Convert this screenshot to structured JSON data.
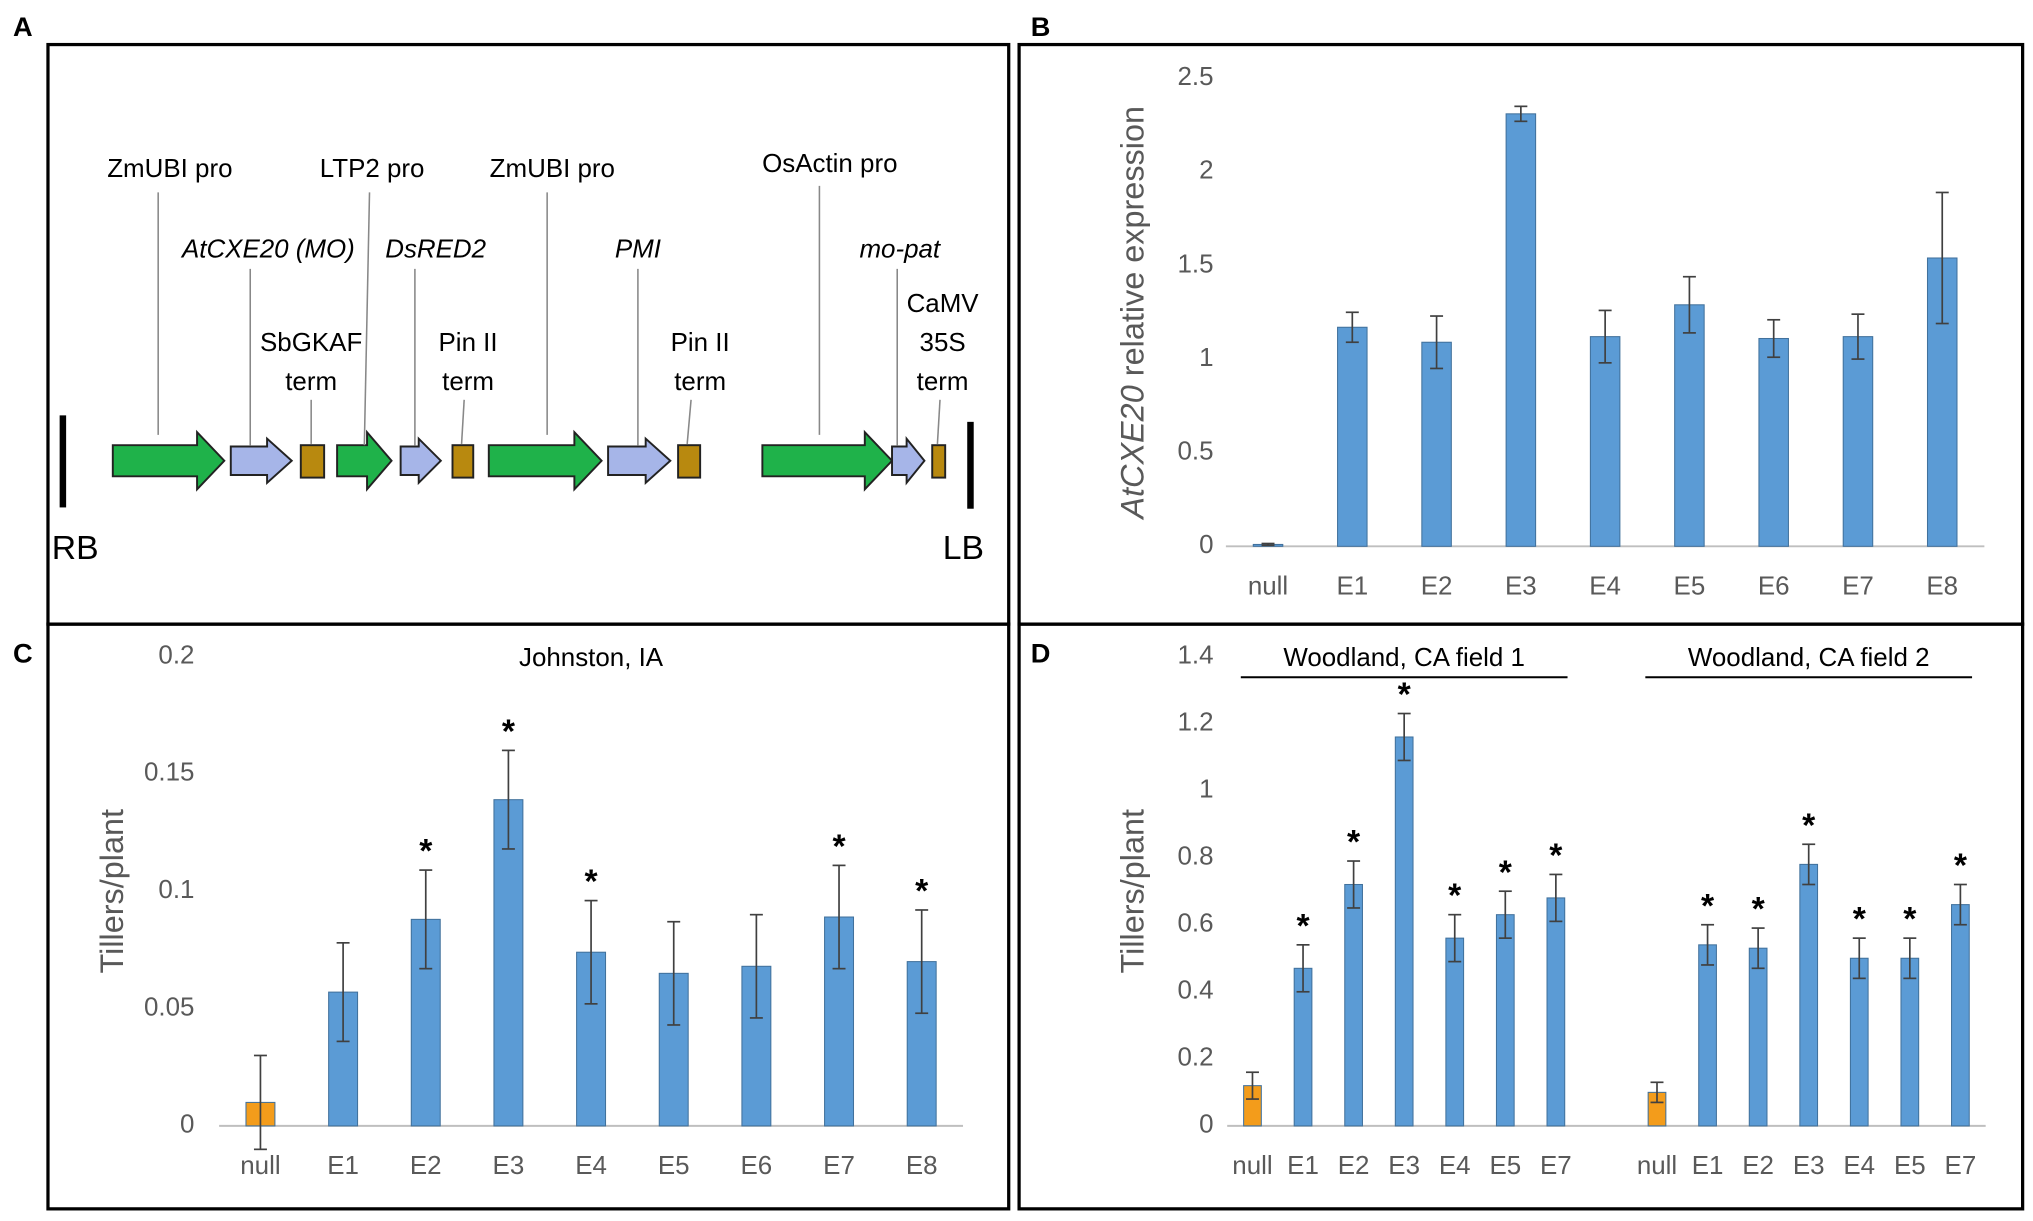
{
  "construct": {
    "panel": "A",
    "promoters": [
      "ZmUBI pro",
      "LTP2 pro",
      "ZmUBI pro",
      "OsActin pro"
    ],
    "genes": [
      "AtCXE20 (MO)",
      "DsRED2",
      "PMI",
      "mo-pat"
    ],
    "terminators": [
      [
        "SbGKAF",
        "term"
      ],
      [
        "Pin II",
        "term"
      ],
      [
        "Pin II",
        "term"
      ],
      [
        "CaMV",
        "35S",
        "term"
      ]
    ],
    "right_border": "RB",
    "left_border": "LB",
    "colors": {
      "promoter": "#1fb24a",
      "gene": "#a6b5e8",
      "terminator": "#b8890f"
    }
  },
  "chart_data": [
    {
      "type": "bar",
      "panel": "B",
      "ylabel_italic": "AtCXE20",
      "ylabel": "relative expression",
      "ylim": [
        0,
        2.5
      ],
      "yticks": [
        0,
        0.5,
        1,
        1.5,
        2,
        2.5
      ],
      "grid": false,
      "groups": [
        {
          "categories": [
            "null",
            "E1",
            "E2",
            "E3",
            "E4",
            "E5",
            "E6",
            "E7",
            "E8"
          ],
          "values": [
            0.01,
            1.17,
            1.09,
            2.31,
            1.12,
            1.29,
            1.11,
            1.12,
            1.54
          ],
          "errors": [
            0.005,
            0.08,
            0.14,
            0.04,
            0.14,
            0.15,
            0.1,
            0.12,
            0.35
          ],
          "colors": [
            "#5b9bd5",
            "#5b9bd5",
            "#5b9bd5",
            "#5b9bd5",
            "#5b9bd5",
            "#5b9bd5",
            "#5b9bd5",
            "#5b9bd5",
            "#5b9bd5"
          ]
        }
      ]
    },
    {
      "type": "bar",
      "panel": "C",
      "title": "Johnston, IA",
      "ylabel": "Tillers/plant",
      "ylim": [
        0,
        0.2
      ],
      "yticks": [
        0,
        0.05,
        0.1,
        0.15,
        0.2
      ],
      "grid": false,
      "groups": [
        {
          "categories": [
            "null",
            "E1",
            "E2",
            "E3",
            "E4",
            "E5",
            "E6",
            "E7",
            "E8"
          ],
          "values": [
            0.01,
            0.057,
            0.088,
            0.139,
            0.074,
            0.065,
            0.068,
            0.089,
            0.07
          ],
          "errors": [
            0.02,
            0.021,
            0.021,
            0.021,
            0.022,
            0.022,
            0.022,
            0.022,
            0.022
          ],
          "significance": [
            null,
            null,
            "*",
            "*",
            "*",
            null,
            null,
            "*",
            "*"
          ],
          "colors": [
            "#f39c1b",
            "#5b9bd5",
            "#5b9bd5",
            "#5b9bd5",
            "#5b9bd5",
            "#5b9bd5",
            "#5b9bd5",
            "#5b9bd5",
            "#5b9bd5"
          ]
        }
      ]
    },
    {
      "type": "bar",
      "panel": "D",
      "ylabel": "Tillers/plant",
      "ylim": [
        0,
        1.4
      ],
      "yticks": [
        0,
        0.2,
        0.4,
        0.6,
        0.8,
        1,
        1.2,
        1.4
      ],
      "grid": false,
      "groups": [
        {
          "name": "Woodland, CA field 1",
          "categories": [
            "null",
            "E1",
            "E2",
            "E3",
            "E4",
            "E5",
            "E7"
          ],
          "values": [
            0.12,
            0.47,
            0.72,
            1.16,
            0.56,
            0.63,
            0.68
          ],
          "errors": [
            0.04,
            0.07,
            0.07,
            0.07,
            0.07,
            0.07,
            0.07
          ],
          "significance": [
            null,
            "*",
            "*",
            "*",
            "*",
            "*",
            "*"
          ],
          "colors": [
            "#f39c1b",
            "#5b9bd5",
            "#5b9bd5",
            "#5b9bd5",
            "#5b9bd5",
            "#5b9bd5",
            "#5b9bd5"
          ]
        },
        {
          "name": "Woodland, CA field 2",
          "categories": [
            "null",
            "E1",
            "E2",
            "E3",
            "E4",
            "E5",
            "E7"
          ],
          "values": [
            0.1,
            0.54,
            0.53,
            0.78,
            0.5,
            0.5,
            0.66
          ],
          "errors": [
            0.03,
            0.06,
            0.06,
            0.06,
            0.06,
            0.06,
            0.06
          ],
          "significance": [
            null,
            "*",
            "*",
            "*",
            "*",
            "*",
            "*"
          ],
          "colors": [
            "#f39c1b",
            "#5b9bd5",
            "#5b9bd5",
            "#5b9bd5",
            "#5b9bd5",
            "#5b9bd5",
            "#5b9bd5"
          ]
        }
      ]
    }
  ]
}
